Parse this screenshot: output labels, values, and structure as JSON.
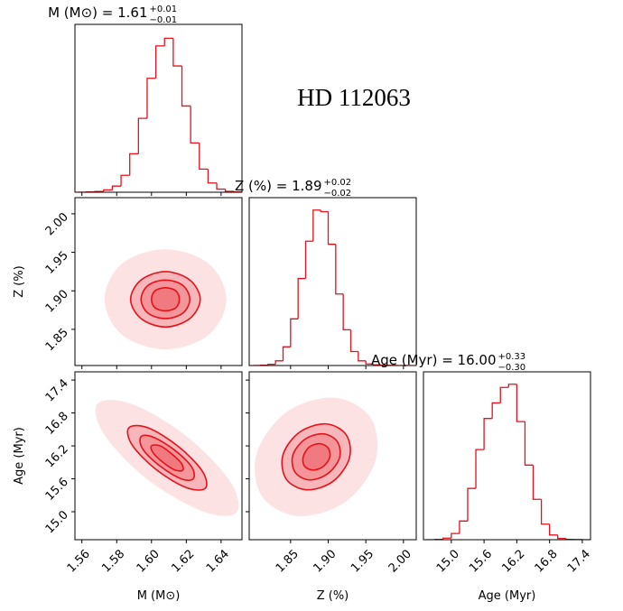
{
  "annotation": "HD 112063",
  "chart_data": [
    {
      "type": "histogram",
      "title": "M (M⊙) = 1.61",
      "title_sup": "+0.01",
      "title_sub": "−0.01",
      "color": "#e8101a",
      "bins": [
        1.5575,
        1.5625,
        1.5675,
        1.5725,
        1.5775,
        1.5825,
        1.5875,
        1.5925,
        1.5975,
        1.6025,
        1.6075,
        1.6125,
        1.6175,
        1.6225,
        1.6275,
        1.6325,
        1.6375,
        1.6425,
        1.6475,
        1.6525
      ],
      "values": [
        0,
        2,
        5,
        15,
        40,
        110,
        250,
        480,
        740,
        950,
        1000,
        820,
        560,
        320,
        150,
        60,
        20,
        6,
        2
      ],
      "xlim": [
        1.556,
        1.652
      ],
      "ylim": [
        0,
        1090
      ]
    },
    {
      "type": "contour",
      "color": "#e8101a",
      "xlim": [
        1.556,
        1.652
      ],
      "ylim": [
        1.803,
        2.021
      ],
      "ylabel": "Z (%)",
      "yticks": [
        1.85,
        {
          "value": 1.9,
          "label": "1.90"
        },
        1.95,
        {
          "value": 2,
          "label": "2.00"
        }
      ],
      "contours": [
        {
          "x": [
            1.643,
            1.633,
            1.608,
            1.583,
            1.573,
            1.583,
            1.608,
            1.633
          ],
          "y": [
            1.889,
            1.935,
            1.954,
            1.935,
            1.889,
            1.843,
            1.824,
            1.843
          ]
        },
        {
          "x": [
            1.628,
            1.622,
            1.608,
            1.594,
            1.588,
            1.594,
            1.608,
            1.622
          ],
          "y": [
            1.889,
            1.914,
            1.925,
            1.914,
            1.889,
            1.864,
            1.853,
            1.864
          ]
        },
        {
          "x": [
            1.622,
            1.618,
            1.608,
            1.598,
            1.594,
            1.598,
            1.608,
            1.618
          ],
          "y": [
            1.889,
            1.907,
            1.914,
            1.907,
            1.889,
            1.871,
            1.864,
            1.871
          ]
        },
        {
          "x": [
            1.616,
            1.614,
            1.608,
            1.602,
            1.6,
            1.602,
            1.608,
            1.614
          ],
          "y": [
            1.889,
            1.9,
            1.904,
            1.9,
            1.889,
            1.878,
            1.874,
            1.878
          ]
        }
      ]
    },
    {
      "type": "histogram",
      "title": "Z (%) = 1.89",
      "title_sup": "+0.02",
      "title_sub": "−0.02",
      "color": "#e8101a",
      "bins": [
        1.8,
        1.81,
        1.82,
        1.83,
        1.84,
        1.85,
        1.86,
        1.87,
        1.88,
        1.89,
        1.9,
        1.91,
        1.92,
        1.93,
        1.94,
        1.95,
        1.96,
        1.97,
        1.98,
        1.99,
        2.0,
        2.01
      ],
      "values": [
        0,
        2,
        8,
        30,
        120,
        300,
        560,
        800,
        1000,
        990,
        780,
        460,
        230,
        90,
        30,
        10,
        4,
        2,
        1,
        0,
        0
      ],
      "xlim": [
        1.795,
        2.017
      ],
      "ylim": [
        0,
        1080
      ]
    },
    {
      "type": "contour",
      "color": "#e8101a",
      "xlim": [
        1.556,
        1.652
      ],
      "ylim": [
        14.49,
        17.55
      ],
      "xlabel": "M (M⊙)",
      "ylabel": "Age (Myr)",
      "xticks": [
        1.56,
        1.58,
        {
          "value": 1.6,
          "label": "1.60"
        },
        1.62,
        1.64
      ],
      "yticks": [
        {
          "value": 15,
          "label": "15.0"
        },
        15.6,
        16.2,
        16.8,
        17.4
      ],
      "contours": [
        {
          "x": [
            1.649,
            1.645,
            1.62,
            1.589,
            1.569,
            1.573,
            1.598,
            1.63
          ],
          "y": [
            14.99,
            15.56,
            16.38,
            16.96,
            16.97,
            16.4,
            15.58,
            15.0
          ]
        },
        {
          "x": [
            1.631,
            1.629,
            1.615,
            1.598,
            1.587,
            1.589,
            1.603,
            1.62
          ],
          "y": [
            15.43,
            15.75,
            16.2,
            16.53,
            16.53,
            16.21,
            15.76,
            15.44
          ]
        },
        {
          "x": [
            1.624,
            1.623,
            1.613,
            1.601,
            1.594,
            1.595,
            1.605,
            1.617
          ],
          "y": [
            15.6,
            15.82,
            16.13,
            16.36,
            16.37,
            16.14,
            15.83,
            15.6
          ]
        },
        {
          "x": [
            1.618,
            1.617,
            1.611,
            1.605,
            1.6,
            1.601,
            1.607,
            1.6135
          ],
          "y": [
            15.76,
            15.89,
            16.07,
            16.2,
            16.2,
            16.07,
            15.89,
            15.76
          ]
        }
      ]
    },
    {
      "type": "contour",
      "color": "#e8101a",
      "xlim": [
        1.795,
        2.017
      ],
      "ylim": [
        14.49,
        17.55
      ],
      "xlabel": "Z (%)",
      "xticks": [
        1.85,
        {
          "value": 1.9,
          "label": "1.90"
        },
        1.95,
        {
          "value": 2,
          "label": "2.00"
        }
      ],
      "contours": [
        {
          "x": [
            1.956,
            1.907,
            1.844,
            1.805,
            1.812,
            1.861,
            1.924,
            1.963
          ],
          "y": [
            16.72,
            17.08,
            16.81,
            16.06,
            15.28,
            14.92,
            15.19,
            15.94
          ]
        },
        {
          "x": [
            1.924,
            1.897,
            1.862,
            1.84,
            1.844,
            1.871,
            1.906,
            1.928
          ],
          "y": [
            16.4,
            16.6,
            16.45,
            16.04,
            15.6,
            15.4,
            15.55,
            15.97
          ]
        },
        {
          "x": [
            1.912,
            1.893,
            1.869,
            1.853,
            1.856,
            1.875,
            1.899,
            1.915
          ],
          "y": [
            16.28,
            16.42,
            16.32,
            16.03,
            15.72,
            15.58,
            15.69,
            15.98
          ]
        },
        {
          "x": [
            1.9,
            1.889,
            1.875,
            1.867,
            1.868,
            1.879,
            1.893,
            1.902
          ],
          "y": [
            16.16,
            16.24,
            16.18,
            16.01,
            15.84,
            15.76,
            15.82,
            15.99
          ]
        }
      ]
    },
    {
      "type": "histogram",
      "title": "Age (Myr) = 16.00",
      "title_sup": "+0.33",
      "title_sub": "−0.30",
      "color": "#e8101a",
      "xlabel": "Age (Myr)",
      "xticks": [
        {
          "value": 15,
          "label": "15.0"
        },
        15.6,
        16.2,
        16.8,
        17.4
      ],
      "bins": [
        14.55,
        14.7,
        14.85,
        15.0,
        15.15,
        15.3,
        15.45,
        15.6,
        15.75,
        15.9,
        16.05,
        16.2,
        16.35,
        16.5,
        16.65,
        16.8,
        16.95,
        17.1,
        17.25,
        17.4,
        17.55
      ],
      "values": [
        0,
        2,
        10,
        40,
        120,
        330,
        580,
        780,
        880,
        980,
        1000,
        760,
        480,
        260,
        100,
        30,
        8,
        2,
        1,
        0
      ],
      "xlim": [
        14.49,
        17.55
      ],
      "ylim": [
        0,
        1080
      ]
    }
  ]
}
